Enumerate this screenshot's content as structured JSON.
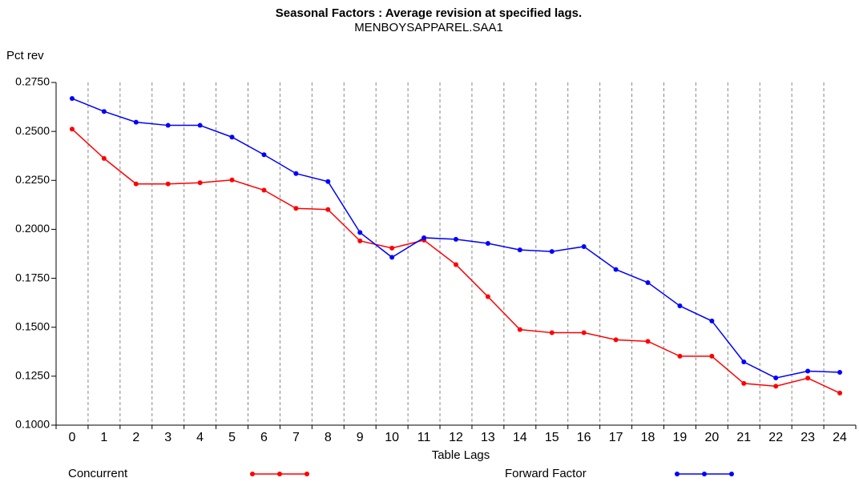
{
  "chart_data": {
    "type": "line",
    "title": "Seasonal Factors : Average revision at specified lags.",
    "subtitle": "MENBOYSAPPAREL.SAA1",
    "y_label": "Pct rev",
    "x_label": "Table Lags",
    "categories": [
      "0",
      "1",
      "2",
      "3",
      "4",
      "5",
      "6",
      "7",
      "8",
      "9",
      "10",
      "11",
      "12",
      "13",
      "14",
      "15",
      "16",
      "17",
      "18",
      "19",
      "20",
      "21",
      "22",
      "23",
      "24"
    ],
    "series": [
      {
        "name": "Concurrent",
        "color": "#ff0000",
        "values": [
          0.2512,
          0.2362,
          0.2232,
          0.2232,
          0.2238,
          0.2252,
          0.22,
          0.2107,
          0.2101,
          0.1941,
          0.1904,
          0.1945,
          0.182,
          0.1656,
          0.1488,
          0.1472,
          0.1472,
          0.1436,
          0.1428,
          0.1352,
          0.1352,
          0.1213,
          0.1199,
          0.124,
          0.1164
        ]
      },
      {
        "name": "Forward Factor",
        "color": "#0000ff",
        "values": [
          0.2668,
          0.2602,
          0.2547,
          0.2531,
          0.2531,
          0.2471,
          0.2381,
          0.2285,
          0.2244,
          0.1984,
          0.1857,
          0.1957,
          0.1949,
          0.1928,
          0.1895,
          0.1887,
          0.1912,
          0.1795,
          0.1728,
          0.1609,
          0.1532,
          0.1323,
          0.1241,
          0.1276,
          0.127
        ]
      }
    ],
    "ylim": [
      0.1,
      0.275
    ],
    "yticks": [
      {
        "value": 0.1,
        "label": "0.1000"
      },
      {
        "value": 0.125,
        "label": "0.1250"
      },
      {
        "value": 0.15,
        "label": "0.1500"
      },
      {
        "value": 0.175,
        "label": "0.1750"
      },
      {
        "value": 0.2,
        "label": "0.2000"
      },
      {
        "value": 0.225,
        "label": "0.2250"
      },
      {
        "value": 0.25,
        "label": "0.2500"
      },
      {
        "value": 0.275,
        "label": "0.2750"
      }
    ],
    "grid": true,
    "legend": "bottom"
  }
}
